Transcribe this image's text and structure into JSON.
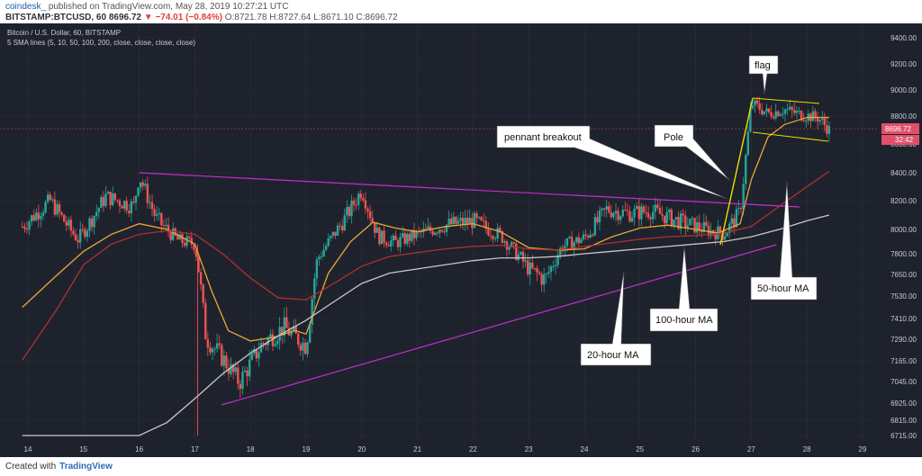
{
  "header": {
    "brand": "coindesk_",
    "published": "published on TradingView.com, May 28, 2019 10:27:21 UTC",
    "symbol": "BITSTAMP:BTCUSD, 60",
    "last": "8696.72",
    "change": "▼ −74.01 (−0.84%)",
    "ohlc": "O:8721.78 H:8727.64 L:8671.10 C:8696.72"
  },
  "footer": {
    "created_with": "Created with",
    "tradingview": "TradingView"
  },
  "colors": {
    "background": "#1e222d",
    "grid": "#2b2f3b",
    "up": "#26a69a",
    "down": "#ef5350",
    "sma20": "#e8a838",
    "sma50": "#b03030",
    "sma100": "#c8c8c8",
    "trendline": "#c030c8",
    "pattern": "#e8e000",
    "price_label": "#e0506a"
  },
  "chart_data": {
    "type": "candlestick",
    "title": "Bitcoin / U.S. Dollar, 60, BITSTAMP",
    "subtitle": "5 SMA lines (5, 10, 50, 100, 200, close, close, close, close)",
    "x_ticks": [
      "14",
      "15",
      "16",
      "17",
      "18",
      "19",
      "20",
      "21",
      "22",
      "23",
      "24",
      "25",
      "26",
      "27",
      "28",
      "29"
    ],
    "y_ticks": [
      6715,
      6815,
      6925,
      7045,
      7165,
      7290,
      7410,
      7530,
      7650,
      7800,
      8000,
      8200,
      8400,
      8600,
      8800,
      9000,
      9200,
      9400
    ],
    "ylim": [
      6715,
      9500
    ],
    "last_price": "8696.72",
    "countdown": "32:42",
    "annotations": [
      "flag",
      "Pole",
      "pennant breakout",
      "50-hour MA",
      "100-hour MA",
      "20-hour MA"
    ],
    "series": [
      {
        "key": "close",
        "x": [
          13.9,
          14.4,
          14.9,
          15.4,
          15.9,
          16.0,
          16.3,
          16.7,
          17.0,
          17.2,
          17.5,
          17.8,
          18.2,
          18.6,
          19.0,
          19.2,
          19.5,
          19.8,
          20.0,
          20.3,
          20.6,
          21.0,
          21.5,
          22.0,
          22.5,
          23.0,
          23.3,
          23.6,
          24.0,
          24.4,
          24.8,
          25.2,
          25.6,
          26.0,
          26.5,
          26.8,
          27.0,
          27.3,
          27.6,
          27.9,
          28.2,
          28.4
        ],
        "values": [
          8020,
          8200,
          7920,
          8230,
          8160,
          8380,
          8080,
          7910,
          7880,
          7300,
          7180,
          7040,
          7260,
          7360,
          7250,
          7760,
          7960,
          8140,
          8280,
          7940,
          7890,
          7960,
          8030,
          8060,
          7950,
          7690,
          7620,
          7860,
          7930,
          8140,
          8110,
          8130,
          8070,
          8020,
          7960,
          8120,
          8900,
          8820,
          8850,
          8810,
          8790,
          8700
        ]
      },
      {
        "name": "20-hour MA",
        "x": [
          13.9,
          14.5,
          15.0,
          15.5,
          16.0,
          16.5,
          17.0,
          17.3,
          17.6,
          18.0,
          18.4,
          18.8,
          19.0,
          19.4,
          19.8,
          20.2,
          20.6,
          21.0,
          21.5,
          22.0,
          22.5,
          23.0,
          23.5,
          24.0,
          24.5,
          25.0,
          25.5,
          26.0,
          26.4,
          26.8,
          27.0,
          27.3,
          27.6,
          28.0,
          28.4
        ],
        "values": [
          7470,
          7640,
          7820,
          7960,
          8040,
          8000,
          7880,
          7560,
          7340,
          7280,
          7300,
          7340,
          7320,
          7660,
          7900,
          8050,
          8010,
          7980,
          8020,
          8040,
          7980,
          7850,
          7830,
          7840,
          7940,
          8010,
          8030,
          8000,
          7970,
          8040,
          8350,
          8650,
          8740,
          8790,
          8790
        ]
      },
      {
        "name": "50-hour MA",
        "x": [
          13.9,
          14.5,
          15.0,
          15.5,
          16.0,
          16.5,
          17.0,
          17.5,
          18.0,
          18.5,
          19.0,
          19.5,
          20.0,
          20.5,
          21.0,
          21.5,
          22.0,
          22.5,
          23.0,
          23.5,
          24.0,
          24.5,
          25.0,
          25.5,
          26.0,
          26.5,
          27.0,
          27.5,
          28.0,
          28.4
        ],
        "values": [
          7170,
          7450,
          7720,
          7880,
          7960,
          7990,
          7960,
          7800,
          7630,
          7520,
          7510,
          7600,
          7710,
          7780,
          7810,
          7840,
          7860,
          7870,
          7840,
          7830,
          7860,
          7890,
          7920,
          7940,
          7950,
          7970,
          8020,
          8160,
          8300,
          8410
        ]
      },
      {
        "name": "100-hour MA",
        "x": [
          13.9,
          14.5,
          15.0,
          15.5,
          16.0,
          16.5,
          17.0,
          17.5,
          18.0,
          18.5,
          19.0,
          19.5,
          20.0,
          20.5,
          21.0,
          21.5,
          22.0,
          22.5,
          23.0,
          23.5,
          24.0,
          24.5,
          25.0,
          25.5,
          26.0,
          26.5,
          27.0,
          27.5,
          28.0,
          28.4
        ],
        "values": [
          6715,
          6715,
          6715,
          6715,
          6715,
          6800,
          6950,
          7090,
          7210,
          7310,
          7400,
          7500,
          7600,
          7660,
          7690,
          7720,
          7750,
          7770,
          7770,
          7780,
          7800,
          7820,
          7840,
          7860,
          7880,
          7900,
          7940,
          8000,
          8060,
          8100
        ]
      }
    ]
  }
}
